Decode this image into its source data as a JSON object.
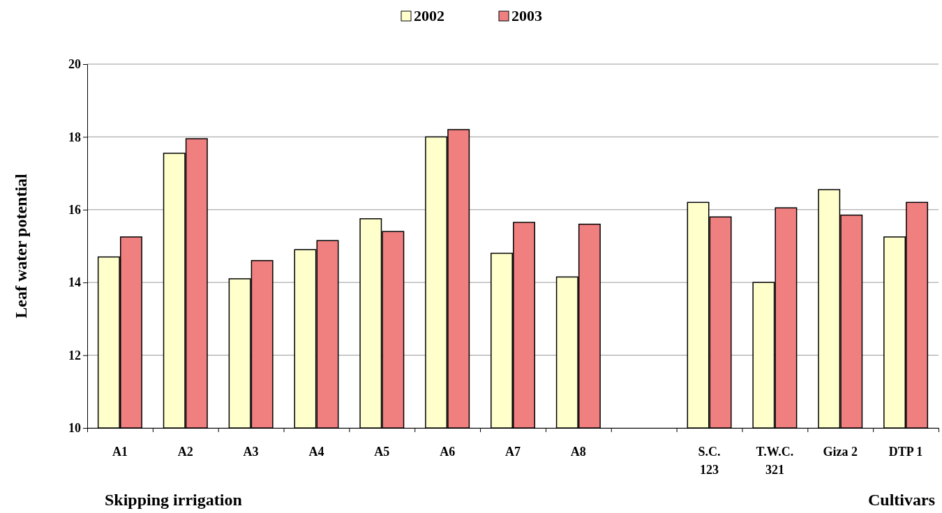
{
  "chart_data": {
    "type": "bar",
    "ylabel": "Leaf water potential",
    "categories": [
      "A1",
      "A2",
      "A3",
      "A4",
      "A5",
      "A6",
      "A7",
      "A8",
      null,
      "S.C.\n123",
      "T.W.C.\n321",
      "Giza 2",
      "DTP 1"
    ],
    "series": [
      {
        "name": "2002",
        "color": "#ffffcc",
        "values": [
          14.7,
          17.55,
          14.1,
          14.9,
          15.75,
          18.0,
          14.8,
          14.15,
          null,
          16.2,
          14.0,
          16.55,
          15.25
        ]
      },
      {
        "name": "2003",
        "color": "#f08080",
        "values": [
          15.25,
          17.95,
          14.6,
          15.15,
          15.4,
          18.2,
          15.65,
          15.6,
          null,
          15.8,
          16.05,
          15.85,
          16.2
        ]
      }
    ],
    "ylim": [
      10,
      20
    ],
    "yticks": [
      10,
      12,
      14,
      16,
      18,
      20
    ],
    "grid": "y",
    "legend": "top",
    "annotations": [
      "Skipping irrigation",
      "Cultivars"
    ]
  }
}
